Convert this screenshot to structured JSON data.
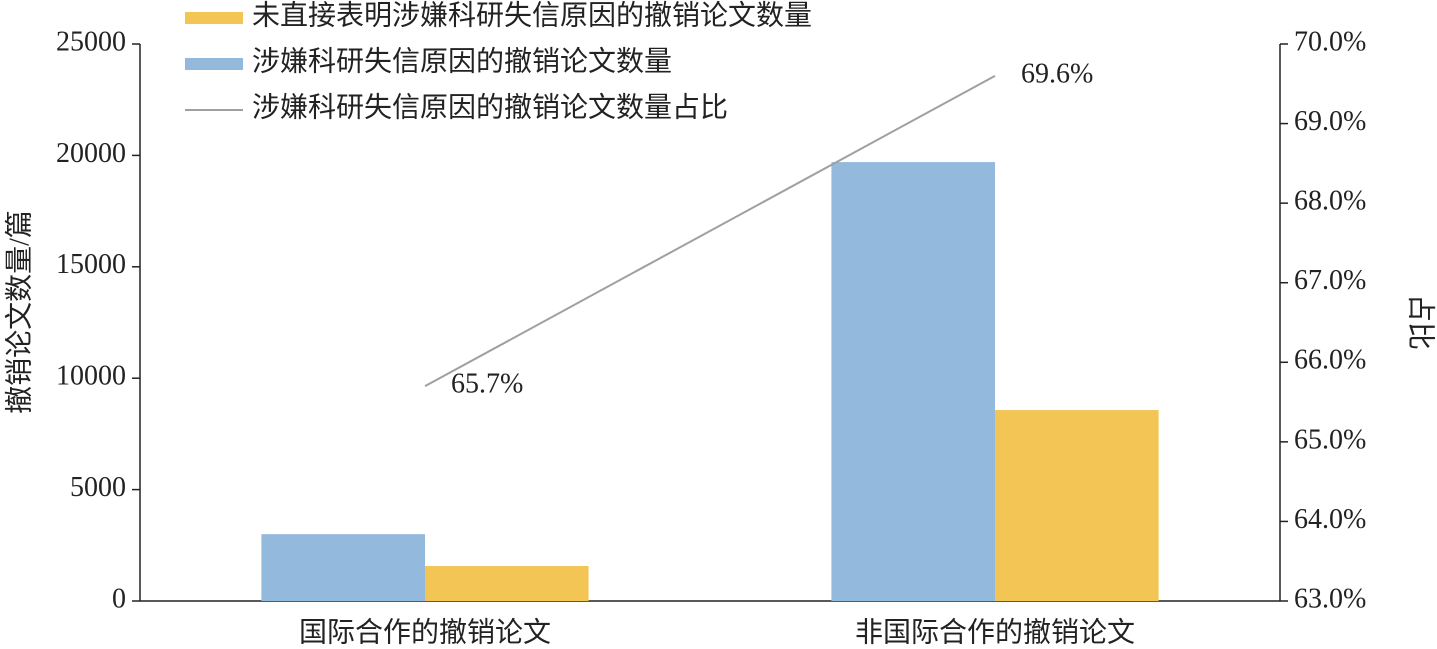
{
  "chart_data": {
    "type": "bar",
    "categories": [
      "国际合作的撤销论文",
      "非国际合作的撤销论文"
    ],
    "series": [
      {
        "name": "涉嫌科研失信原因的撤销论文数量",
        "color": "#93b9dd",
        "values": [
          3000,
          19700
        ]
      },
      {
        "name": "未直接表明涉嫌科研失信原因的撤销论文数量",
        "color": "#f2c555",
        "values": [
          1570,
          8570
        ]
      },
      {
        "name": "涉嫌科研失信原因的撤销论文数量占比",
        "type": "line",
        "axis": "y2",
        "color": "#a0a0a0",
        "values": [
          65.7,
          69.6
        ],
        "value_labels": [
          "65.7%",
          "69.6%"
        ]
      }
    ],
    "legend_order": [
      1,
      0,
      2
    ],
    "y_label": "撤销论文数量/篇",
    "y2_label": "占比",
    "ylim": [
      0,
      25000
    ],
    "yticks": [
      0,
      5000,
      10000,
      15000,
      20000,
      25000
    ],
    "y2lim": [
      63,
      70
    ],
    "y2ticks": [
      {
        "value": 63,
        "label": "63.0%"
      },
      {
        "value": 64,
        "label": "64.0%"
      },
      {
        "value": 65,
        "label": "65.0%"
      },
      {
        "value": 66,
        "label": "66.0%"
      },
      {
        "value": 67,
        "label": "67.0%"
      },
      {
        "value": 68,
        "label": "68.0%"
      },
      {
        "value": 69,
        "label": "69.0%"
      },
      {
        "value": 70,
        "label": "70.0%"
      }
    ],
    "grid": false
  }
}
